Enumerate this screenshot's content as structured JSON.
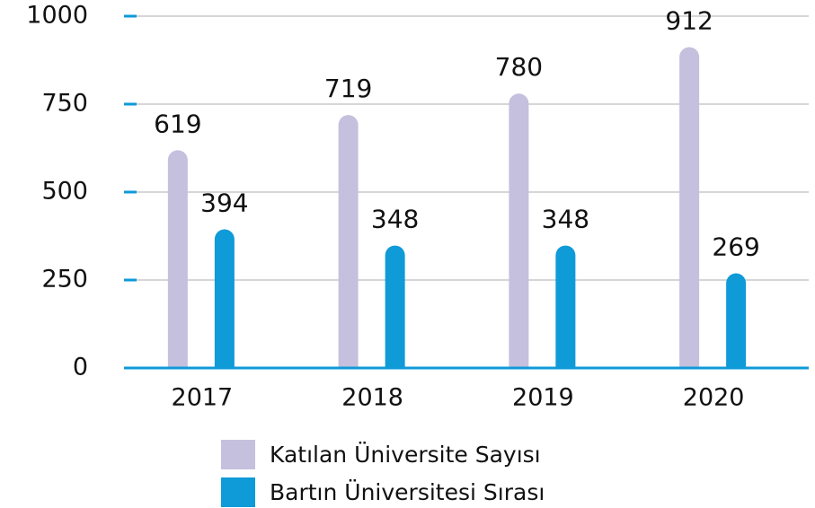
{
  "chart_data": {
    "type": "bar",
    "categories": [
      "2017",
      "2018",
      "2019",
      "2020"
    ],
    "series": [
      {
        "name": "Katılan Üniversite Sayısı",
        "color": "#c5c0de",
        "values": [
          619,
          719,
          780,
          912
        ]
      },
      {
        "name": "Bartın Üniversitesi Sırası",
        "color": "#0f9ad8",
        "values": [
          394,
          348,
          348,
          269
        ]
      }
    ],
    "ylim": [
      0,
      1000
    ],
    "yticks": [
      0,
      250,
      500,
      750,
      1000
    ],
    "grid": true,
    "legend": "bottom"
  }
}
